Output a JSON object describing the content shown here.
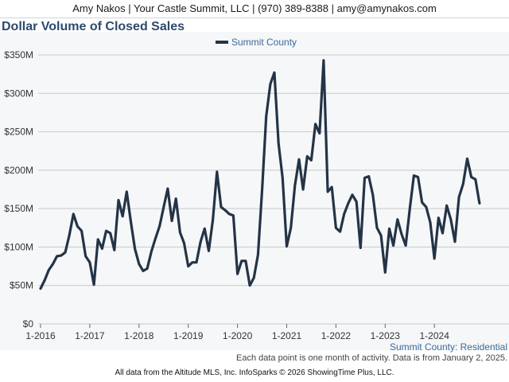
{
  "header": {
    "contact_line": "Amy Nakos | Your Castle Summit, LLC | (970) 389-8388 | amy@amynakos.com"
  },
  "footer": {
    "series_label": "Summit County: Residential",
    "note": "Each data point is one month of activity. Data is from January 2, 2025.",
    "credit": "All data from the Altitude MLS, Inc. InfoSparks © 2026 ShowingTime Plus, LLC."
  },
  "colors": {
    "line": "#243447",
    "title": "#2c4a6e",
    "grid": "#c8c8c8"
  },
  "chart_data": {
    "type": "line",
    "title": "Dollar Volume of Closed Sales",
    "legend": "top-center",
    "grid": true,
    "ylim": [
      0,
      350
    ],
    "yticks": [
      {
        "value": 0,
        "label": "$0"
      },
      {
        "value": 50,
        "label": "$50M"
      },
      {
        "value": 100,
        "label": "$100M"
      },
      {
        "value": 150,
        "label": "$150M"
      },
      {
        "value": 200,
        "label": "$200M"
      },
      {
        "value": 250,
        "label": "$250M"
      },
      {
        "value": 300,
        "label": "$300M"
      },
      {
        "value": 350,
        "label": "$350M"
      }
    ],
    "xticks": [
      "1-2016",
      "1-2017",
      "1-2018",
      "1-2019",
      "1-2020",
      "1-2021",
      "1-2022",
      "1-2023",
      "1-2024"
    ],
    "start": "1-2016",
    "series": [
      {
        "name": "Summit County",
        "color": "#243447",
        "values": [
          46,
          57,
          70,
          78,
          88,
          89,
          93,
          115,
          143,
          127,
          121,
          88,
          80,
          51,
          110,
          98,
          121,
          118,
          96,
          161,
          140,
          172,
          133,
          98,
          78,
          69,
          72,
          94,
          111,
          127,
          152,
          176,
          134,
          163,
          119,
          105,
          75,
          80,
          80,
          107,
          124,
          95,
          135,
          198,
          152,
          148,
          143,
          141,
          65,
          82,
          82,
          50,
          60,
          90,
          175,
          270,
          312,
          327,
          235,
          190,
          101,
          125,
          180,
          214,
          175,
          218,
          213,
          260,
          248,
          343,
          172,
          178,
          125,
          120,
          143,
          157,
          168,
          159,
          99,
          190,
          192,
          168,
          125,
          115,
          67,
          124,
          102,
          136,
          117,
          102,
          150,
          193,
          191,
          158,
          152,
          132,
          85,
          138,
          118,
          154,
          136,
          107,
          165,
          182,
          215,
          191,
          188,
          157
        ]
      }
    ]
  }
}
